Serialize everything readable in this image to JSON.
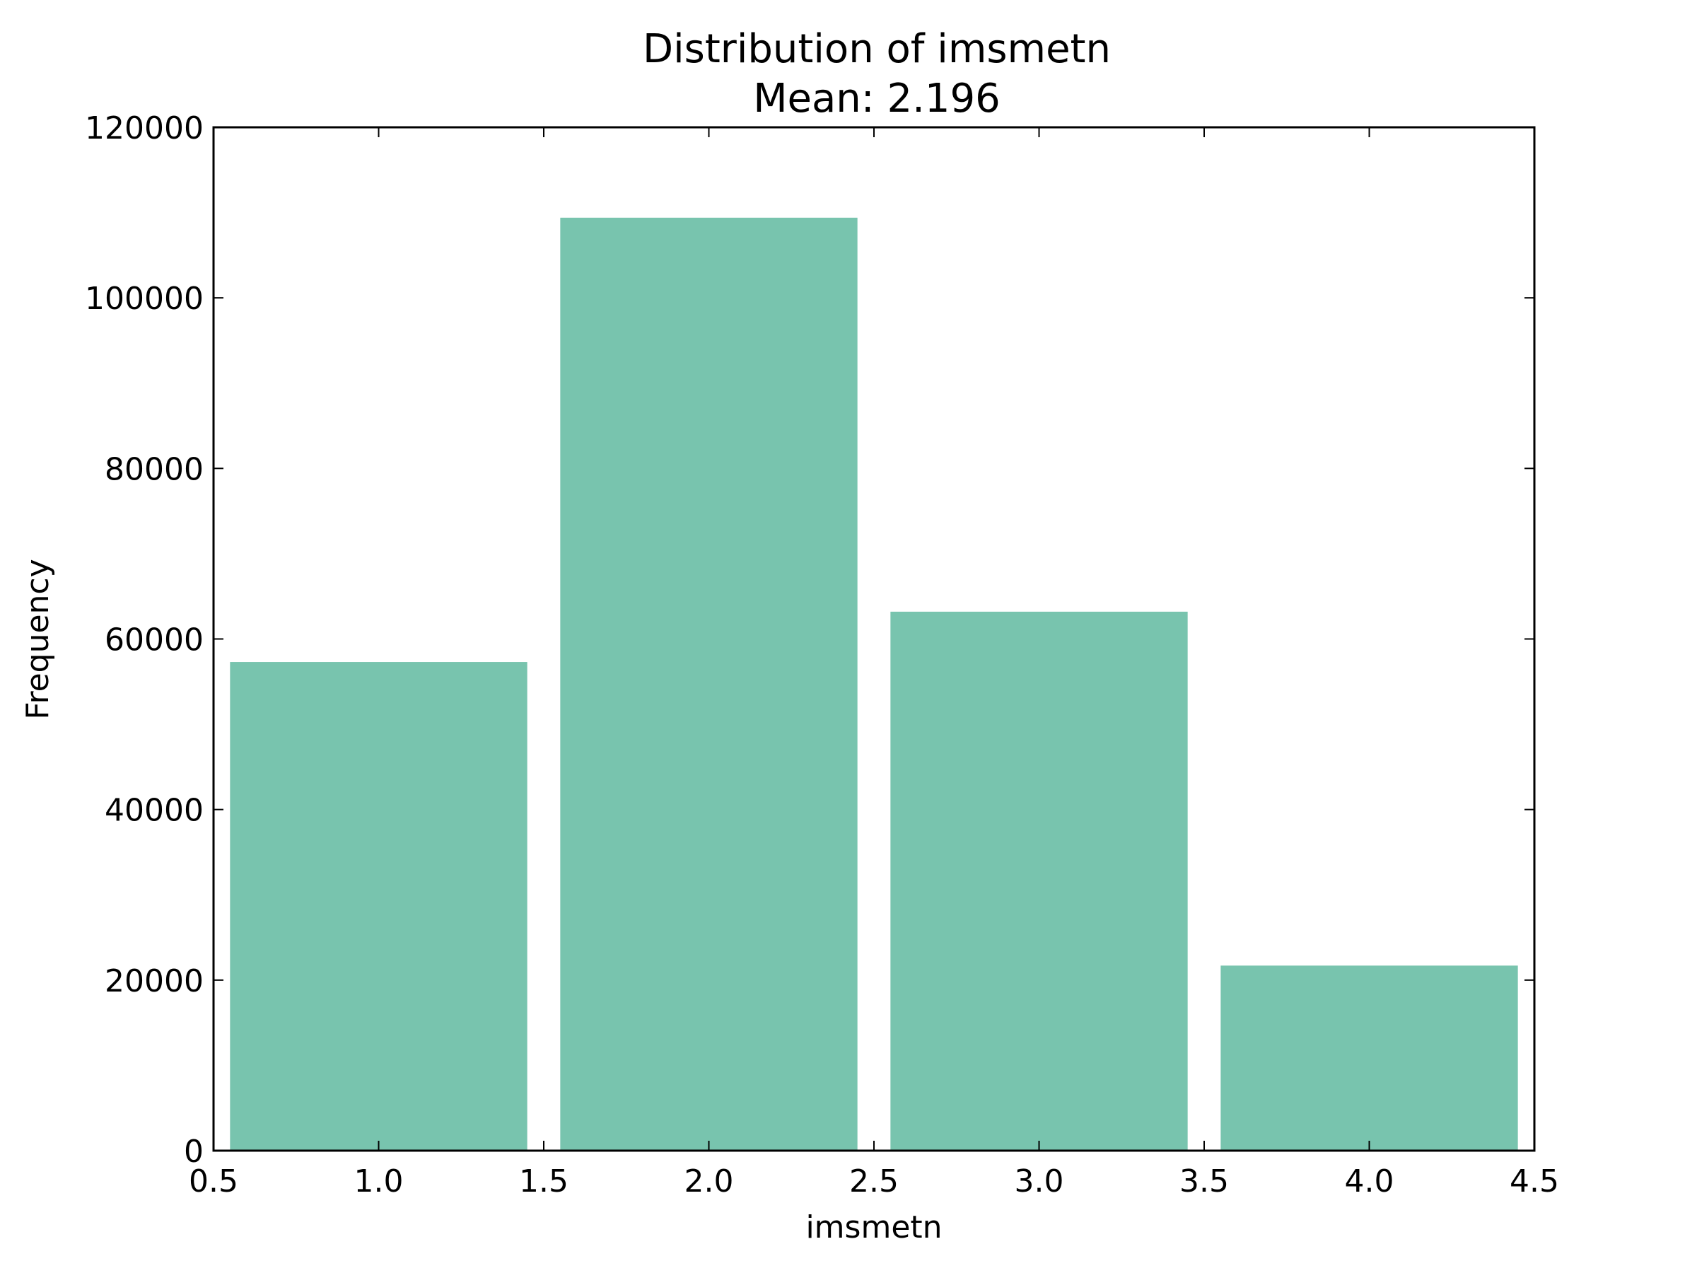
{
  "chart_data": {
    "type": "bar",
    "title": "Distribution of imsmetn",
    "subtitle": "Mean: 2.196",
    "xlabel": "imsmetn",
    "ylabel": "Frequency",
    "categories": [
      1,
      2,
      3,
      4
    ],
    "values": [
      57300,
      109400,
      63200,
      21700
    ],
    "bar_width": 0.9,
    "xlim": [
      0.5,
      4.5
    ],
    "ylim": [
      0,
      120000
    ],
    "xticks": [
      "0.5",
      "1.0",
      "1.5",
      "2.0",
      "2.5",
      "3.0",
      "3.5",
      "4.0",
      "4.5"
    ],
    "yticks": [
      "0",
      "20000",
      "40000",
      "60000",
      "80000",
      "100000",
      "120000"
    ],
    "grid": false,
    "bar_color": "#78c4ae",
    "axis_color": "#000000"
  }
}
